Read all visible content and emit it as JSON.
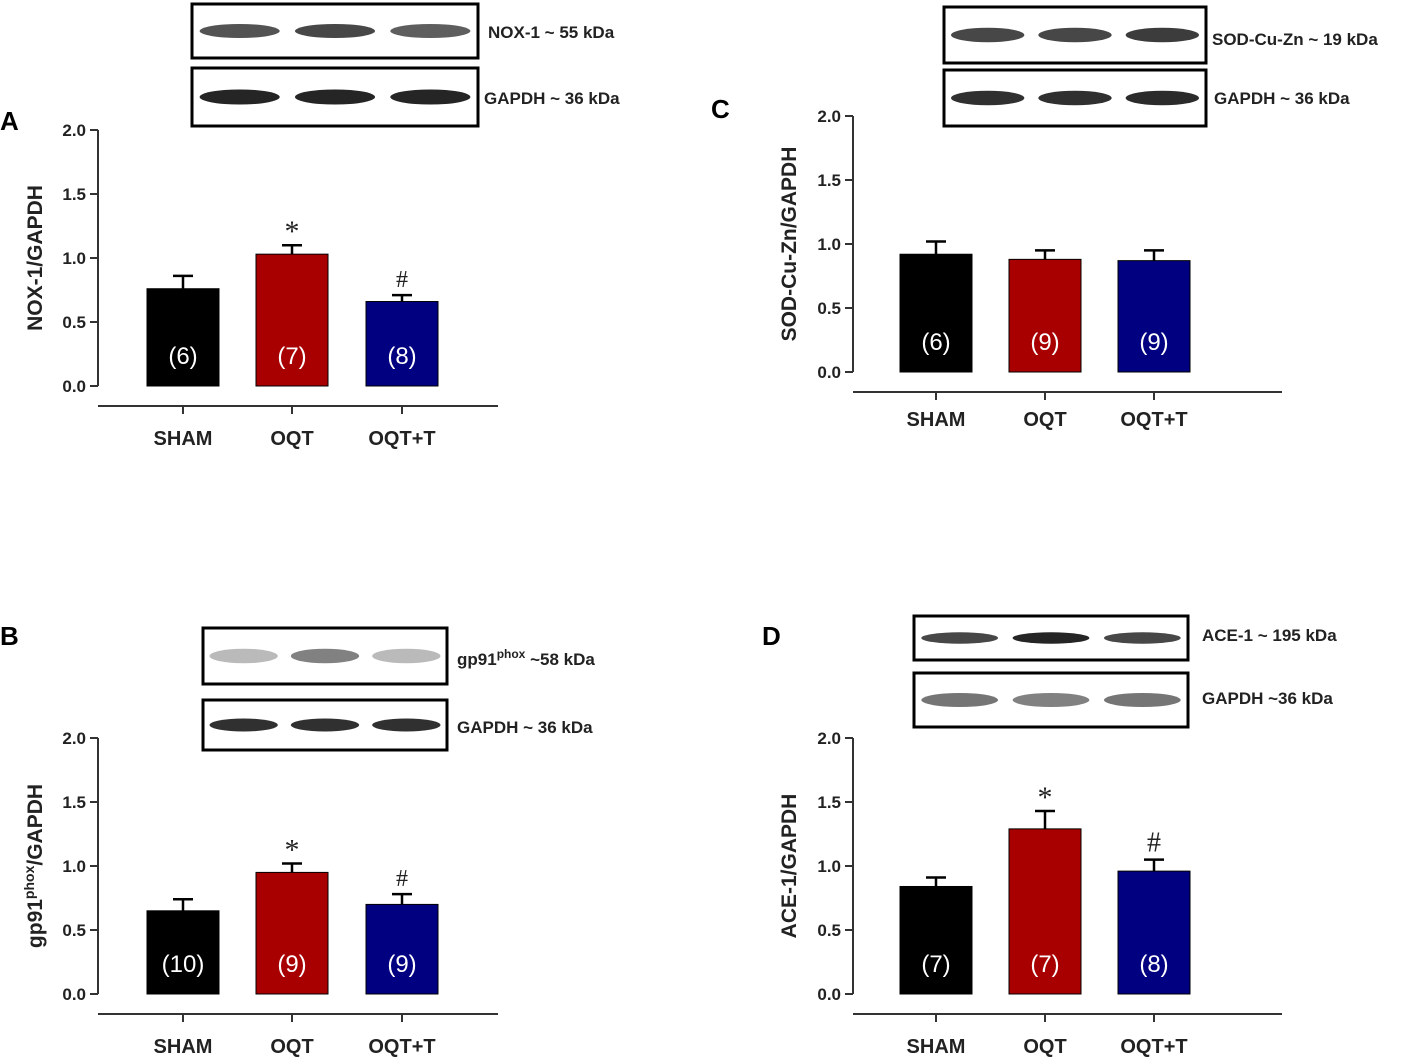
{
  "colors": {
    "sham": "#000000",
    "oqt": "#a80000",
    "oqtt": "#000080",
    "axis": "#333333"
  },
  "chart_data": [
    {
      "id": "A",
      "type": "bar",
      "panel_label": "A",
      "ylabel": "NOX-1/GAPDH",
      "ylim": [
        0,
        2.0
      ],
      "yticks": [
        "0.0",
        "0.5",
        "1.0",
        "1.5",
        "2.0"
      ],
      "categories": [
        "SHAM",
        "OQT",
        "OQT+T"
      ],
      "values": [
        0.76,
        1.03,
        0.66
      ],
      "errors": [
        0.1,
        0.07,
        0.05
      ],
      "n_labels": [
        "(6)",
        "(7)",
        "(8)"
      ],
      "significance": [
        "",
        "*",
        "#"
      ],
      "blots": [
        {
          "label": "NOX-1 ~ 55 kDa",
          "band_darkness": [
            0.75,
            0.8,
            0.7
          ]
        },
        {
          "label": "GAPDH ~ 36 kDa",
          "band_darkness": [
            0.95,
            0.95,
            0.95
          ]
        }
      ]
    },
    {
      "id": "C",
      "type": "bar",
      "panel_label": "C",
      "ylabel": "SOD-Cu-Zn/GAPDH",
      "ylim": [
        0,
        2.0
      ],
      "yticks": [
        "0.0",
        "0.5",
        "1.0",
        "1.5",
        "2.0"
      ],
      "categories": [
        "SHAM",
        "OQT",
        "OQT+T"
      ],
      "values": [
        0.92,
        0.88,
        0.87
      ],
      "errors": [
        0.1,
        0.07,
        0.08
      ],
      "n_labels": [
        "(6)",
        "(9)",
        "(9)"
      ],
      "significance": [
        "",
        "",
        ""
      ],
      "blots": [
        {
          "label": "SOD-Cu-Zn ~ 19 kDa",
          "band_darkness": [
            0.8,
            0.8,
            0.85
          ]
        },
        {
          "label": "GAPDH ~ 36 kDa",
          "band_darkness": [
            0.9,
            0.9,
            0.92
          ]
        }
      ]
    },
    {
      "id": "B",
      "type": "bar",
      "panel_label": "B",
      "ylabel_main": "gp91",
      "ylabel_sup": "phox",
      "ylabel_tail": "/GAPDH",
      "ylim": [
        0,
        2.0
      ],
      "yticks": [
        "0.0",
        "0.5",
        "1.0",
        "1.5",
        "2.0"
      ],
      "categories": [
        "SHAM",
        "OQT",
        "OQT+T"
      ],
      "values": [
        0.65,
        0.95,
        0.7
      ],
      "errors": [
        0.09,
        0.07,
        0.08
      ],
      "n_labels": [
        "(10)",
        "(9)",
        "(9)"
      ],
      "significance": [
        "",
        "*",
        "#"
      ],
      "blots": [
        {
          "label_main": "gp91",
          "label_sup": "phox",
          "label_tail": " ~58 kDa",
          "band_darkness": [
            0.3,
            0.55,
            0.3
          ]
        },
        {
          "label": "GAPDH ~ 36 kDa",
          "band_darkness": [
            0.9,
            0.9,
            0.9
          ]
        }
      ]
    },
    {
      "id": "D",
      "type": "bar",
      "panel_label": "D",
      "ylabel": "ACE-1/GAPDH",
      "ylim": [
        0,
        2.0
      ],
      "yticks": [
        "0.0",
        "0.5",
        "1.0",
        "1.5",
        "2.0"
      ],
      "categories": [
        "SHAM",
        "OQT",
        "OQT+T"
      ],
      "values": [
        0.84,
        1.29,
        0.96
      ],
      "errors": [
        0.07,
        0.14,
        0.09
      ],
      "n_labels": [
        "(7)",
        "(7)",
        "(8)"
      ],
      "significance": [
        "",
        "*",
        "#"
      ],
      "blots": [
        {
          "label": "ACE-1 ~ 195 kDa",
          "band_darkness": [
            0.8,
            0.95,
            0.8
          ]
        },
        {
          "label": "GAPDH ~36 kDa",
          "band_darkness": [
            0.6,
            0.55,
            0.6
          ]
        }
      ]
    }
  ]
}
